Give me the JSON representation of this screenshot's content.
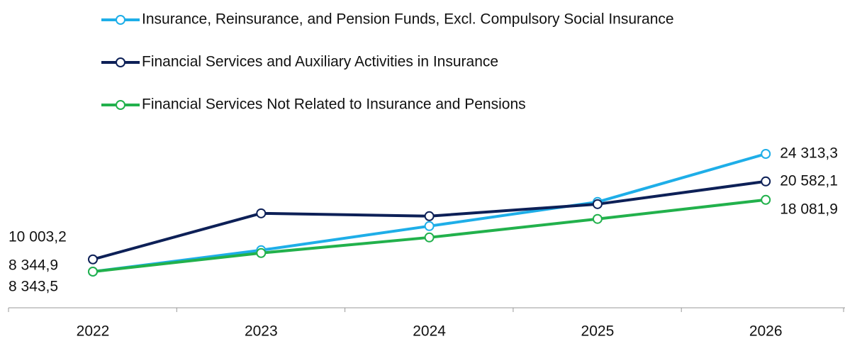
{
  "chart_data": {
    "type": "line",
    "categories": [
      "2022",
      "2023",
      "2024",
      "2025",
      "2026"
    ],
    "series": [
      {
        "name": "Insurance, Reinsurance, and Pension Funds, Excl. Compulsory Social Insurance",
        "color": "#1eaee8",
        "label_color": "#3a7ab8",
        "values": [
          8343.5,
          11250,
          14520,
          17790,
          24313.3
        ],
        "value_labels": [
          "8 343,5",
          null,
          null,
          null,
          "24 313,3"
        ]
      },
      {
        "name": "Financial Services and Auxiliary Activities in Insurance",
        "color": "#0d2057",
        "label_color": "#1a2a5a",
        "values": [
          10003.2,
          16250,
          15870,
          17500,
          20582.1
        ],
        "value_labels": [
          "10 003,2",
          null,
          null,
          null,
          "20 582,1"
        ]
      },
      {
        "name": "Financial Services Not Related to Insurance and Pensions",
        "color": "#22b14c",
        "label_color": "#1aa64a",
        "values": [
          8344.9,
          10870,
          12980,
          15490,
          18081.9
        ],
        "value_labels": [
          "8 344,9",
          null,
          null,
          null,
          "18 081,9"
        ]
      }
    ]
  }
}
